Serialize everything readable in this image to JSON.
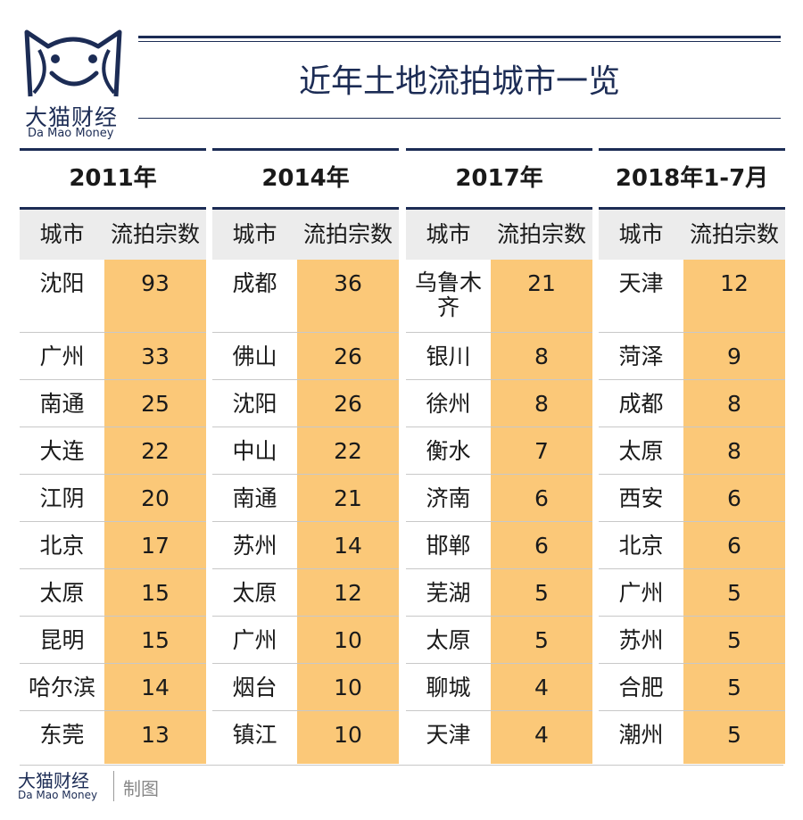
{
  "brand": {
    "name_cn": "大猫财经",
    "name_en": "Da Mao Money",
    "mascot": "cat-face-logo-icon",
    "color": "#1c2c55"
  },
  "title": "近年土地流拍城市一览",
  "column_headers": {
    "city": "城市",
    "count": "流拍宗数"
  },
  "groups": [
    {
      "year": "2011年",
      "rows": [
        {
          "city": "沈阳",
          "count": "93"
        },
        {
          "city": "广州",
          "count": "33"
        },
        {
          "city": "南通",
          "count": "25"
        },
        {
          "city": "大连",
          "count": "22"
        },
        {
          "city": "江阴",
          "count": "20"
        },
        {
          "city": "北京",
          "count": "17"
        },
        {
          "city": "太原",
          "count": "15"
        },
        {
          "city": "昆明",
          "count": "15"
        },
        {
          "city": "哈尔滨",
          "count": "14"
        },
        {
          "city": "东莞",
          "count": "13"
        }
      ]
    },
    {
      "year": "2014年",
      "rows": [
        {
          "city": "成都",
          "count": "36"
        },
        {
          "city": "佛山",
          "count": "26"
        },
        {
          "city": "沈阳",
          "count": "26"
        },
        {
          "city": "中山",
          "count": "22"
        },
        {
          "city": "南通",
          "count": "21"
        },
        {
          "city": "苏州",
          "count": "14"
        },
        {
          "city": "太原",
          "count": "12"
        },
        {
          "city": "广州",
          "count": "10"
        },
        {
          "city": "烟台",
          "count": "10"
        },
        {
          "city": "镇江",
          "count": "10"
        }
      ]
    },
    {
      "year": "2017年",
      "rows": [
        {
          "city": "乌鲁木齐",
          "count": "21"
        },
        {
          "city": "银川",
          "count": "8"
        },
        {
          "city": "徐州",
          "count": "8"
        },
        {
          "city": "衡水",
          "count": "7"
        },
        {
          "city": "济南",
          "count": "6"
        },
        {
          "city": "邯郸",
          "count": "6"
        },
        {
          "city": "芜湖",
          "count": "5"
        },
        {
          "city": "太原",
          "count": "5"
        },
        {
          "city": "聊城",
          "count": "4"
        },
        {
          "city": "天津",
          "count": "4"
        }
      ]
    },
    {
      "year": "2018年1-7月",
      "rows": [
        {
          "city": "天津",
          "count": "12"
        },
        {
          "city": "菏泽",
          "count": "9"
        },
        {
          "city": "成都",
          "count": "8"
        },
        {
          "city": "太原",
          "count": "8"
        },
        {
          "city": "西安",
          "count": "6"
        },
        {
          "city": "北京",
          "count": "6"
        },
        {
          "city": "广州",
          "count": "5"
        },
        {
          "city": "苏州",
          "count": "5"
        },
        {
          "city": "合肥",
          "count": "5"
        },
        {
          "city": "潮州",
          "count": "5"
        }
      ]
    }
  ],
  "footer": {
    "name_cn": "大猫财经",
    "name_en": "Da Mao Money",
    "suffix": "制图"
  },
  "colors": {
    "highlight": "#fbc878",
    "header_bg": "#ececec",
    "navy": "#1c2c55"
  }
}
